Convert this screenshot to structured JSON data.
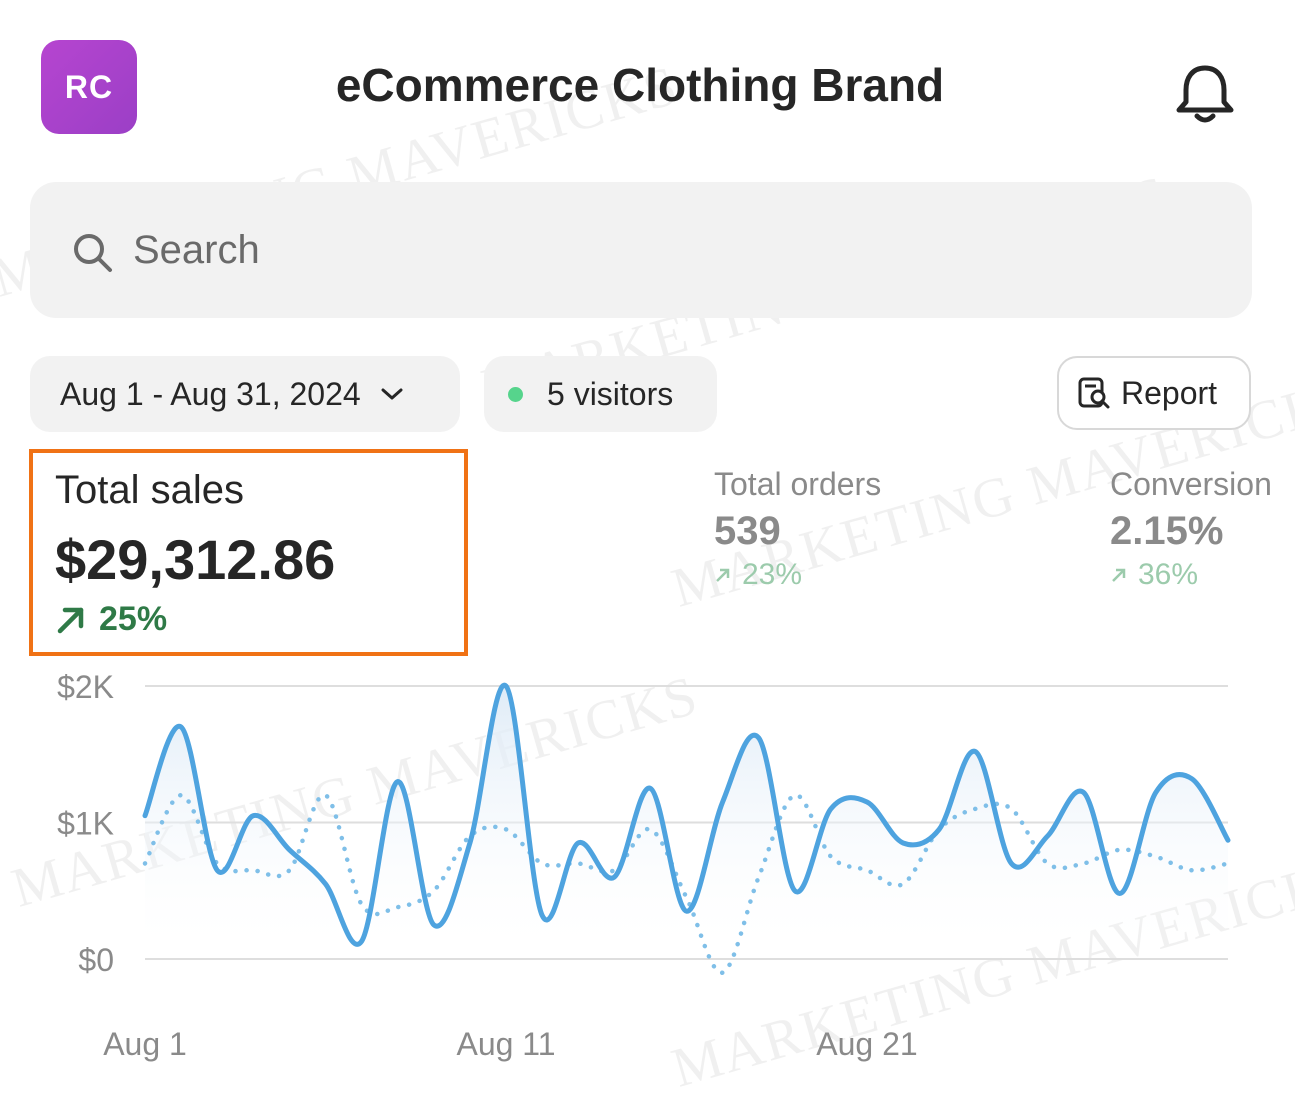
{
  "header": {
    "avatar_initials": "RC",
    "avatar_color": "#b047cd",
    "title": "eCommerce Clothing Brand",
    "notification_icon": "bell-icon"
  },
  "search": {
    "placeholder": "Search",
    "icon": "search-icon"
  },
  "filters": {
    "date_range": "Aug 1 - Aug 31, 2024",
    "visitors": "5 visitors",
    "visitors_dot_color": "#56d48c",
    "report_label": "Report"
  },
  "metrics": {
    "total_sales": {
      "label": "Total sales",
      "value": "$29,312.86",
      "change": "25%",
      "highlight_color": "#f07215"
    },
    "total_orders": {
      "label": "Total orders",
      "value": "539",
      "change": "23%"
    },
    "conversion": {
      "label": "Conversion",
      "value": "2.15%",
      "change": "36%"
    }
  },
  "watermark": "MARKETING MAVERICKS",
  "chart_data": {
    "type": "line",
    "x": [
      1,
      2,
      3,
      4,
      5,
      6,
      7,
      8,
      9,
      10,
      11,
      12,
      13,
      14,
      15,
      16,
      17,
      18,
      19,
      20,
      21,
      22,
      23,
      24,
      25,
      26,
      27,
      28,
      29,
      30,
      31
    ],
    "x_tick_labels": [
      "Aug 1",
      "Aug 11",
      "Aug 21"
    ],
    "y_tick_labels": [
      "$2K",
      "$1K",
      "$0"
    ],
    "ylim": [
      0,
      2000
    ],
    "grid": true,
    "series": [
      {
        "style": "solid",
        "color": "#4ea3df",
        "values": [
          1050,
          1700,
          650,
          1050,
          800,
          550,
          130,
          1300,
          250,
          850,
          2000,
          320,
          850,
          600,
          1250,
          350,
          1150,
          1620,
          500,
          1100,
          1150,
          850,
          950,
          1520,
          700,
          900,
          1220,
          480,
          1220,
          1320,
          870
        ]
      },
      {
        "style": "dotted",
        "color": "#7fbfe8",
        "values": [
          700,
          1200,
          700,
          650,
          650,
          1200,
          400,
          380,
          500,
          900,
          950,
          700,
          700,
          650,
          950,
          450,
          -100,
          600,
          1200,
          750,
          650,
          550,
          950,
          1100,
          1100,
          700,
          700,
          800,
          750,
          650,
          700
        ]
      }
    ]
  }
}
